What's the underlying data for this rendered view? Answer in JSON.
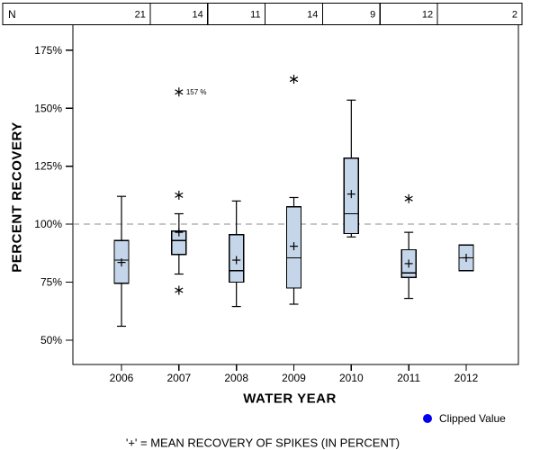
{
  "figure": {
    "background": "#ffffff"
  },
  "n_row": {
    "label": "N",
    "counts": [
      "21",
      "14",
      "11",
      "14",
      "9",
      "12",
      "2"
    ]
  },
  "legend": {
    "clipped_label": "Clipped Value",
    "clipped_dot_color": "#0000ee"
  },
  "footnote": "'+' = MEAN RECOVERY OF SPIKES (IN PERCENT)",
  "colors": {
    "box_fill": "#c5d6ea",
    "box_stroke": "#000000",
    "reference_line": "#8c8c8c",
    "axis": "#000000"
  },
  "chart_data": {
    "type": "boxplot",
    "title": "",
    "xlabel": "WATER YEAR",
    "ylabel": "PERCENT RECOVERY",
    "categories": [
      "2006",
      "2007",
      "2008",
      "2009",
      "2010",
      "2011",
      "2012"
    ],
    "n_values": [
      21,
      14,
      11,
      14,
      9,
      12,
      2
    ],
    "ylim": [
      39.5,
      186
    ],
    "yticks": [
      {
        "value": 50,
        "label": "50%"
      },
      {
        "value": 75,
        "label": "75%"
      },
      {
        "value": 100,
        "label": "100%"
      },
      {
        "value": 125,
        "label": "125%"
      },
      {
        "value": 150,
        "label": "150%"
      },
      {
        "value": 175,
        "label": "175%"
      }
    ],
    "reference_line": 100,
    "mean_marker": "+",
    "outlier_marker": "*",
    "series": [
      {
        "category": "2006",
        "whisker_low": 56,
        "q1": 74.5,
        "median": 84.5,
        "q3": 93,
        "whisker_high": 112,
        "mean": 83.5,
        "outliers": []
      },
      {
        "category": "2007",
        "whisker_low": 78.5,
        "q1": 87,
        "median": 93,
        "q3": 97,
        "whisker_high": 104.5,
        "mean": 96.5,
        "outliers": [
          {
            "value": 157,
            "label": "157 %"
          },
          {
            "value": 112.5
          },
          {
            "value": 71.5
          }
        ]
      },
      {
        "category": "2008",
        "whisker_low": 64.5,
        "q1": 75,
        "median": 80,
        "q3": 95.5,
        "whisker_high": 110,
        "mean": 84.5,
        "outliers": []
      },
      {
        "category": "2009",
        "whisker_low": 65.5,
        "q1": 72.5,
        "median": 85.5,
        "q3": 107.5,
        "whisker_high": 111.5,
        "mean": 90.5,
        "outliers": [
          {
            "value": 162.5
          }
        ]
      },
      {
        "category": "2010",
        "whisker_low": 94.5,
        "q1": 96,
        "median": 104.5,
        "q3": 128.5,
        "whisker_high": 153.5,
        "mean": 113,
        "outliers": []
      },
      {
        "category": "2011",
        "whisker_low": 68,
        "q1": 77,
        "median": 79,
        "q3": 89,
        "whisker_high": 96.5,
        "mean": 83,
        "outliers": [
          {
            "value": 111
          }
        ]
      },
      {
        "category": "2012",
        "whisker_low": 80,
        "q1": 80,
        "median": 85.5,
        "q3": 91,
        "whisker_high": 91,
        "mean": 85.5,
        "outliers": []
      }
    ]
  }
}
